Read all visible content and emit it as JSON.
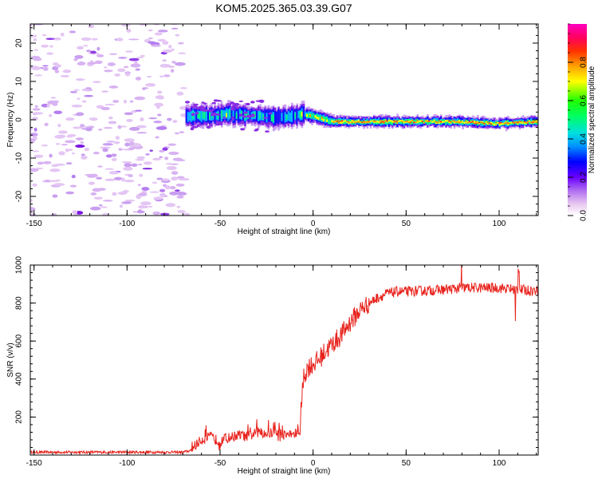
{
  "title": "KOM5.2025.365.03.39.G07",
  "colors": {
    "snr_line": "#e8231d",
    "axis": "#000000",
    "colormap": [
      "#f2d4ee",
      "#c89cf2",
      "#8a2be2",
      "#0000ff",
      "#00c8ff",
      "#00ff00",
      "#ffff00",
      "#ff8000",
      "#ff0000",
      "#ff00ff"
    ]
  },
  "chart_data": [
    {
      "type": "heatmap",
      "name": "spectrogram",
      "xlabel": "Height of straight line (km)",
      "ylabel": "Frequency (Hz)",
      "xlim": [
        -152,
        121
      ],
      "ylim": [
        -25,
        25
      ],
      "xticks": [
        -150,
        -100,
        -50,
        0,
        50,
        100
      ],
      "yticks": [
        -20,
        -10,
        0,
        10,
        20
      ],
      "x_minor_step": 10,
      "y_minor_step": 2,
      "noise_region_x": [
        -152,
        -68
      ],
      "signal_start_x": -68,
      "frequency_track": [
        {
          "x": -68,
          "f": 1.0
        },
        {
          "x": -55,
          "f": 1.0
        },
        {
          "x": -45,
          "f": 1.5
        },
        {
          "x": -30,
          "f": 1.0
        },
        {
          "x": -20,
          "f": 0.5
        },
        {
          "x": -10,
          "f": 1.0
        },
        {
          "x": -5,
          "f": 1.5
        },
        {
          "x": 0,
          "f": 1.0
        },
        {
          "x": 10,
          "f": -0.5
        },
        {
          "x": 20,
          "f": -0.5
        },
        {
          "x": 50,
          "f": -0.5
        },
        {
          "x": 80,
          "f": -0.5
        },
        {
          "x": 100,
          "f": -1.0
        },
        {
          "x": 121,
          "f": -0.5
        }
      ],
      "colorbar": {
        "label": "Normalized spectral amplitude",
        "range": [
          0,
          1
        ],
        "ticks": [
          0.0,
          0.2,
          0.4,
          0.6,
          0.8
        ],
        "tick_labels": [
          "0.0",
          "0.2",
          "0.4",
          "0.6",
          "0.8"
        ]
      }
    },
    {
      "type": "line",
      "name": "snr",
      "xlabel": "Height of straight line (km)",
      "ylabel": "SNR (v/v)",
      "xlim": [
        -152,
        121
      ],
      "ylim": [
        0,
        1000
      ],
      "xticks": [
        -150,
        -100,
        -50,
        0,
        50,
        100
      ],
      "yticks": [
        200,
        400,
        600,
        800,
        1000
      ],
      "x_minor_step": 10,
      "y_minor_step": 40,
      "series": [
        {
          "name": "SNR",
          "x": [
            -152,
            -100,
            -70,
            -65,
            -60,
            -55,
            -50,
            -45,
            -40,
            -35,
            -30,
            -25,
            -20,
            -15,
            -10,
            -8,
            -7,
            -6,
            -5,
            -3,
            0,
            3,
            6,
            10,
            15,
            20,
            25,
            30,
            35,
            40,
            45,
            50,
            60,
            70,
            80,
            90,
            100,
            110,
            121
          ],
          "values": [
            15,
            15,
            15,
            25,
            70,
            85,
            60,
            80,
            95,
            85,
            110,
            100,
            110,
            95,
            100,
            110,
            110,
            300,
            410,
            460,
            480,
            500,
            540,
            580,
            630,
            700,
            760,
            800,
            830,
            850,
            860,
            860,
            865,
            870,
            880,
            880,
            880,
            870,
            865
          ]
        }
      ]
    }
  ]
}
